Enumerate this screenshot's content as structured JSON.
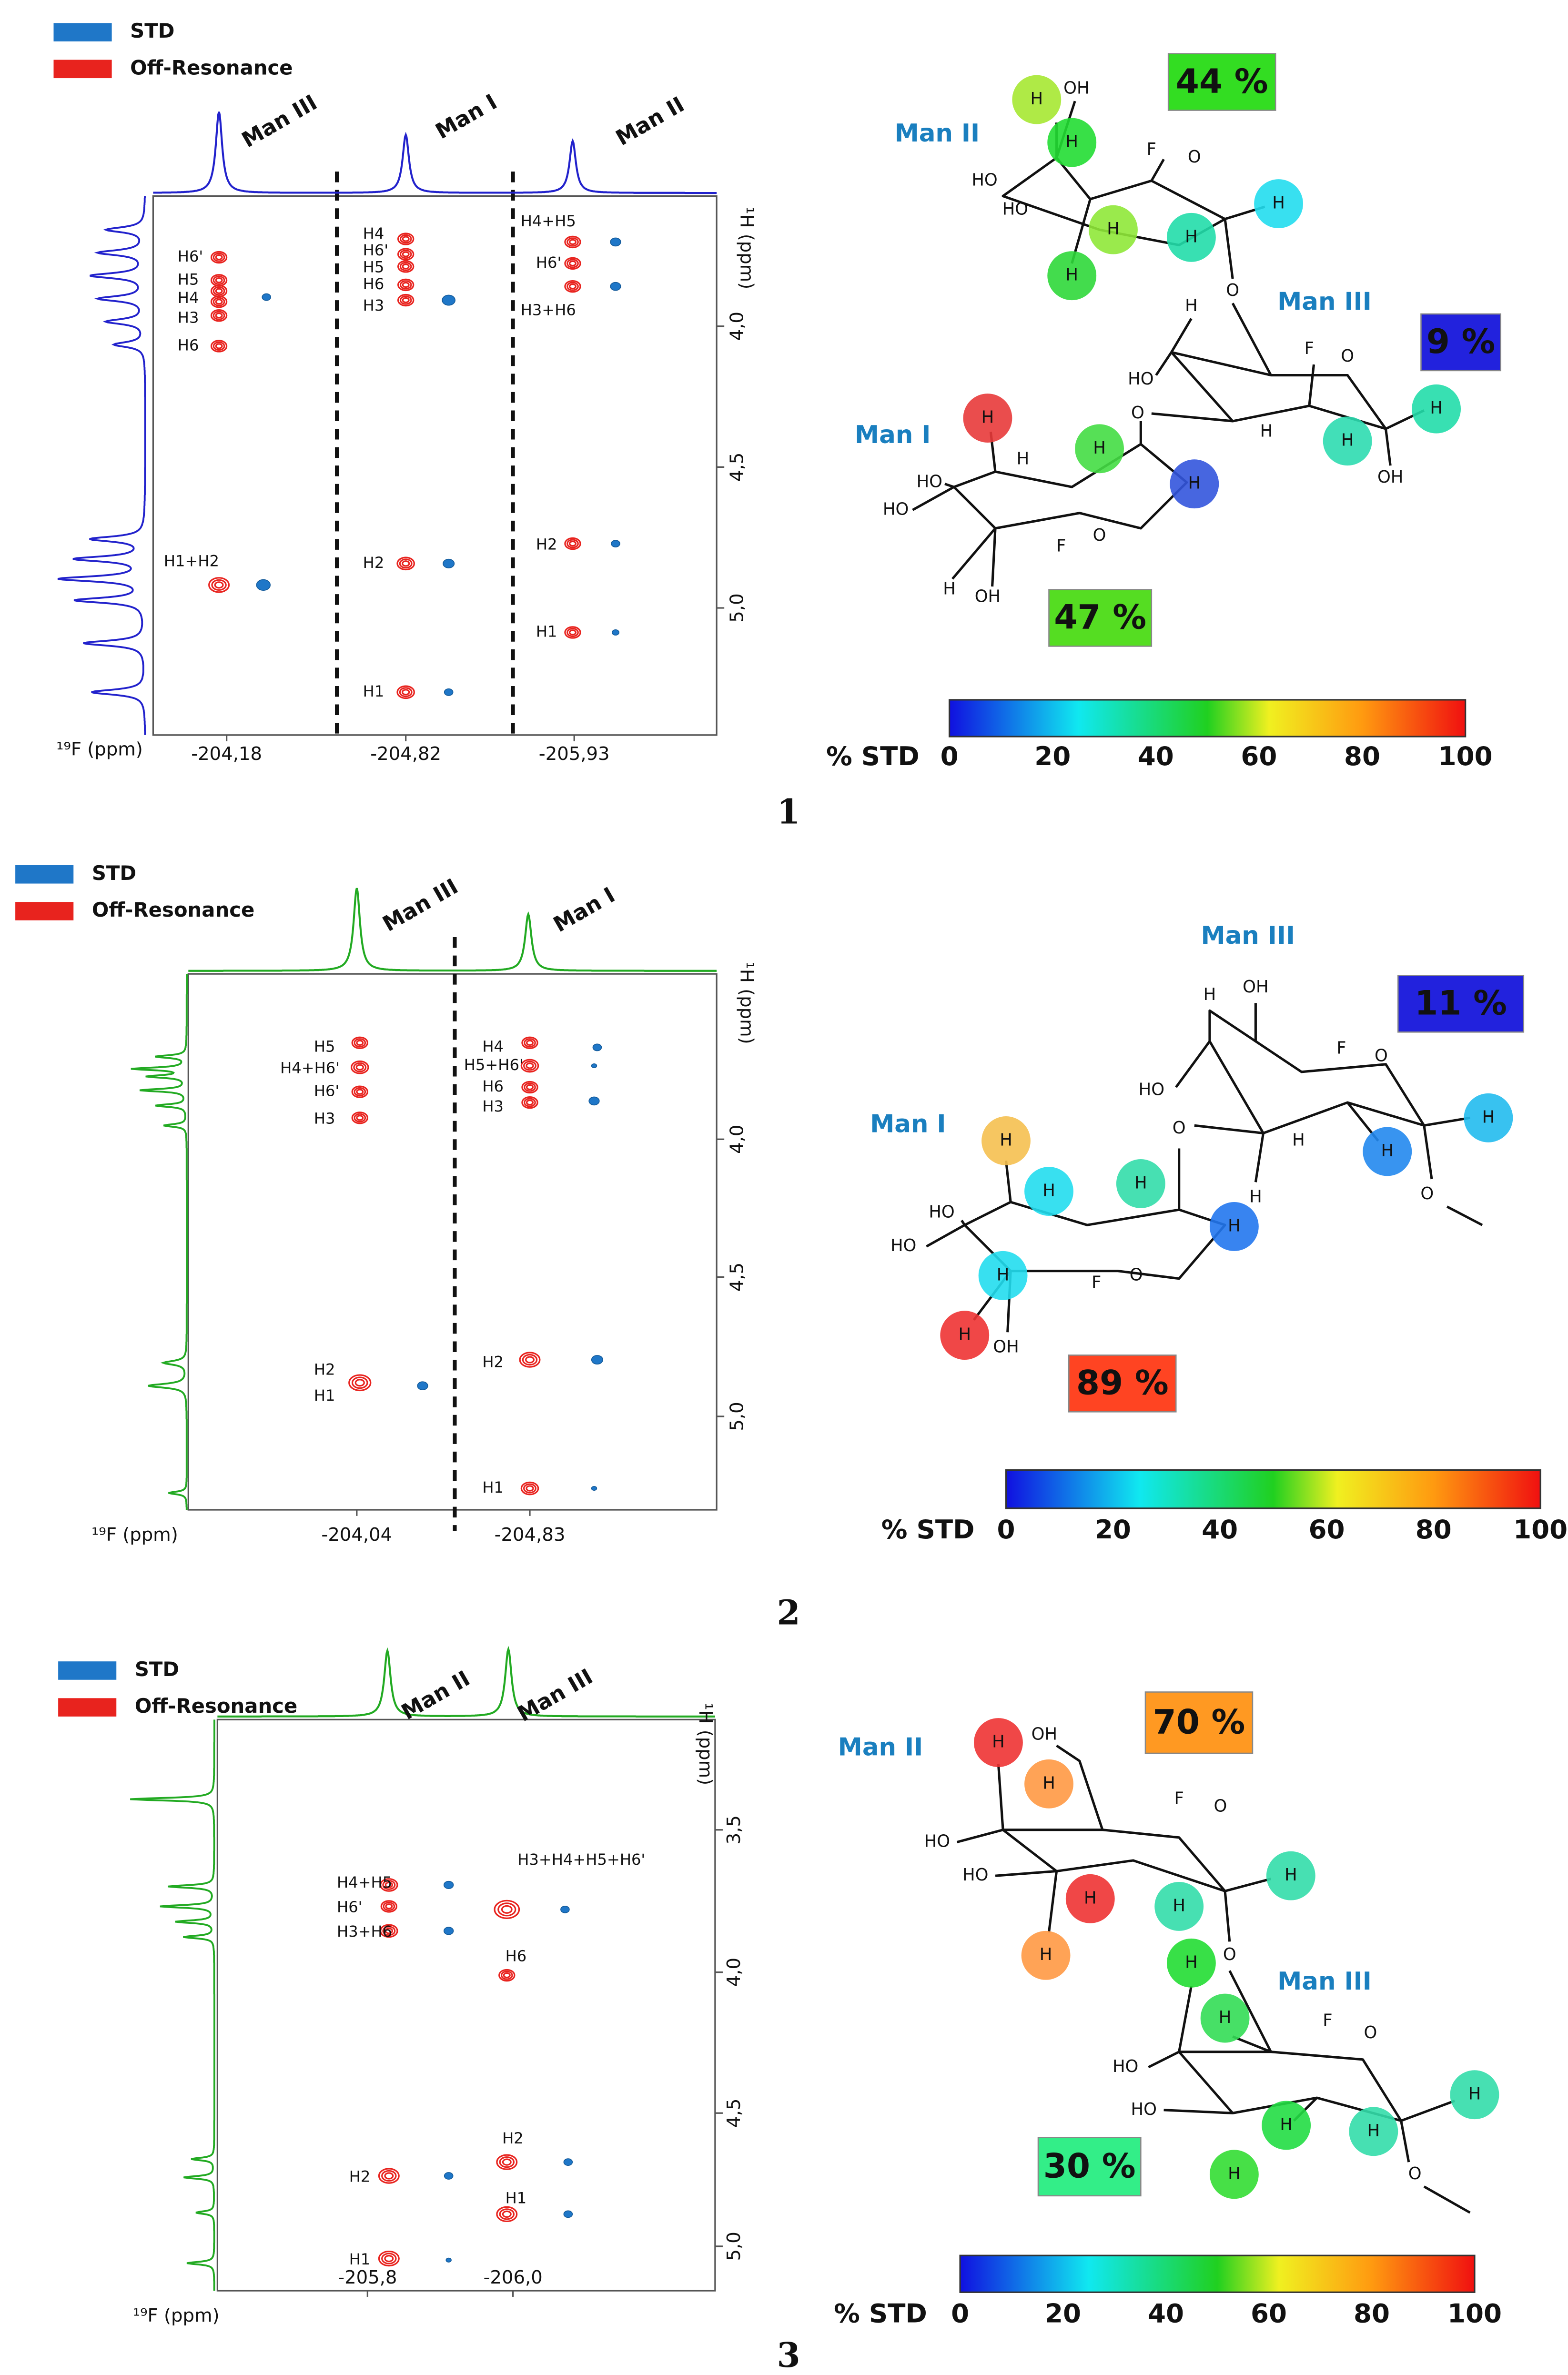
{
  "panels": [
    {
      "number": "1",
      "legend": [
        "STD",
        "Off-Resonance"
      ],
      "spectrum": {
        "residues": [
          "Man III",
          "Man I",
          "Man II"
        ],
        "x_axis_label": "¹⁹F (ppm)",
        "y_axis_label": "¹H (ppm)",
        "x_ticks": [
          "-204,18",
          "-204,82",
          "-205,93"
        ],
        "y_ticks": [
          "4,0",
          "4,5",
          "5,0"
        ],
        "peak_labels": [
          "H6'",
          "H5",
          "H4",
          "H3",
          "H6",
          "H1+H2",
          "H4",
          "H6'",
          "H5",
          "H6",
          "H3",
          "H2",
          "H1",
          "H4+H5",
          "H6'",
          "H3+H6",
          "H2",
          "H1"
        ]
      },
      "structure": {
        "residues": [
          "Man II",
          "Man III",
          "Man I"
        ],
        "std": [
          "44 %",
          "9 %",
          "47 %"
        ],
        "atoms": [
          "H",
          "OH",
          "H",
          "HO",
          "HO",
          "F",
          "O",
          "H",
          "H",
          "H",
          "H",
          "O",
          "H",
          "HO",
          "F",
          "O",
          "O",
          "H",
          "H",
          "H",
          "OH",
          "H",
          "H",
          "H",
          "H",
          "HO",
          "HO",
          "F",
          "O",
          "H",
          "OH"
        ]
      },
      "colorbar": {
        "label": "% STD",
        "ticks": [
          "0",
          "20",
          "40",
          "60",
          "80",
          "100"
        ]
      }
    },
    {
      "number": "2",
      "legend": [
        "STD",
        "Off-Resonance"
      ],
      "spectrum": {
        "residues": [
          "Man III",
          "Man I"
        ],
        "x_axis_label": "¹⁹F (ppm)",
        "y_axis_label": "¹H (ppm)",
        "x_ticks": [
          "-204,04",
          "-204,83"
        ],
        "y_ticks": [
          "4,0",
          "4,5",
          "5,0"
        ],
        "peak_labels": [
          "H5",
          "H4+H6'",
          "H6'",
          "H3",
          "H2",
          "H1",
          "H4",
          "H5+H6'",
          "H6",
          "H3",
          "H2",
          "H1"
        ]
      },
      "structure": {
        "residues": [
          "Man III",
          "Man I"
        ],
        "std": [
          "11 %",
          "89 %"
        ],
        "atoms": [
          "H",
          "OH",
          "HO",
          "F",
          "O",
          "O",
          "H",
          "H",
          "H",
          "H",
          "O",
          "H",
          "H",
          "H",
          "H",
          "HO",
          "HO",
          "H",
          "F",
          "O",
          "H",
          "OH"
        ]
      },
      "colorbar": {
        "label": "% STD",
        "ticks": [
          "0",
          "20",
          "40",
          "60",
          "80",
          "100"
        ]
      }
    },
    {
      "number": "3",
      "legend": [
        "STD",
        "Off-Resonance"
      ],
      "spectrum": {
        "residues": [
          "Man II",
          "Man III"
        ],
        "x_axis_label": "¹⁹F (ppm)",
        "y_axis_label": "¹H (ppm)",
        "x_ticks": [
          "-205,8",
          "-206,0"
        ],
        "y_ticks": [
          "3,5",
          "4,0",
          "4,5",
          "5,0"
        ],
        "peak_labels": [
          "H4+H5",
          "H6'",
          "H3+H6",
          "H3+H4+H5+H6'",
          "H6",
          "H2",
          "H1",
          "H2",
          "H1"
        ]
      },
      "structure": {
        "residues": [
          "Man II",
          "Man III"
        ],
        "std": [
          "70 %",
          "30 %"
        ],
        "atoms": [
          "H",
          "OH",
          "HO",
          "F",
          "O",
          "HO",
          "H",
          "H",
          "H",
          "H",
          "H",
          "O",
          "H",
          "H",
          "F",
          "O",
          "HO",
          "HO",
          "H",
          "H",
          "H",
          "H",
          "O"
        ]
      },
      "colorbar": {
        "label": "% STD",
        "ticks": [
          "0",
          "20",
          "40",
          "60",
          "80",
          "100"
        ]
      }
    }
  ]
}
